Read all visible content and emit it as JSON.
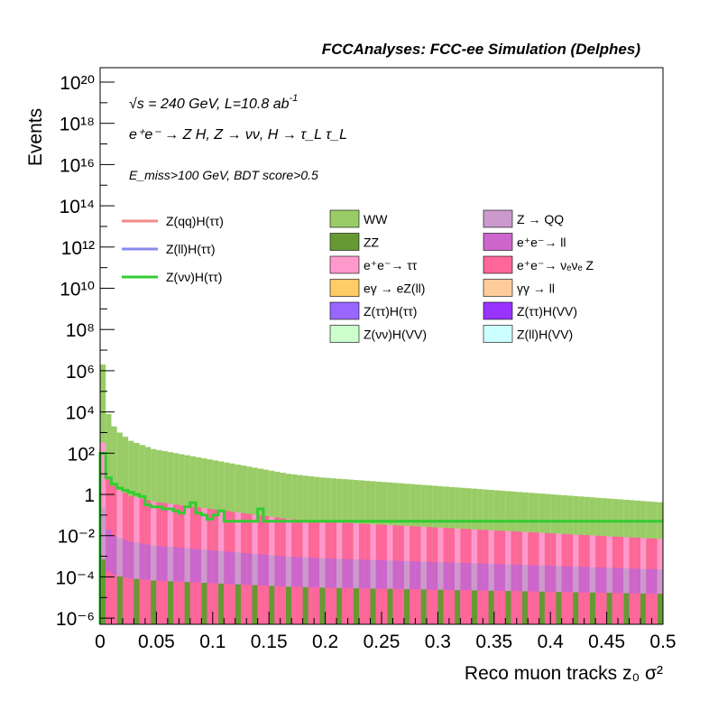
{
  "header": {
    "title": "FCCAnalyses: FCC-ee Simulation (Delphes)"
  },
  "annotations": {
    "line1": "√s = 240 GeV, L=10.8 ab",
    "line1_exp": "-1",
    "line2": "e⁺e⁻ → Z H, Z → νν, H → τ_L τ_L",
    "line3": "E_miss>100 GeV, BDT score>0.5"
  },
  "chart_data": {
    "type": "bar",
    "stacked": true,
    "xlabel": "Reco muon tracks z₀ σ²",
    "ylabel": "Events",
    "xlim": [
      0,
      0.5
    ],
    "ylim_log10": [
      -6.3,
      20.7
    ],
    "log_y": true,
    "x_ticks": [
      "0",
      "0.05",
      "0.1",
      "0.15",
      "0.2",
      "0.25",
      "0.3",
      "0.35",
      "0.4",
      "0.45",
      "0.5"
    ],
    "y_ticks": [
      "10⁻⁶",
      "10⁻⁴",
      "10⁻²",
      "1",
      "10²",
      "10⁴",
      "10⁶",
      "10⁸",
      "10¹⁰",
      "10¹²",
      "10¹⁴",
      "10¹⁶",
      "10¹⁸",
      "10²⁰"
    ],
    "bin_width": 0.005,
    "stack_top_log10": [
      6.3,
      3.9,
      3.3,
      3.0,
      2.8,
      2.6,
      2.5,
      2.4,
      2.3,
      2.2,
      2.15,
      2.1,
      2.05,
      2.0,
      1.95,
      1.9,
      1.85,
      1.8,
      1.75,
      1.7,
      1.65,
      1.6,
      1.55,
      1.5,
      1.45,
      1.4,
      1.35,
      1.3,
      1.25,
      1.2,
      1.15,
      1.1,
      1.05,
      1.0,
      0.97,
      0.94,
      0.91,
      0.88,
      0.85,
      0.82,
      0.8,
      0.78,
      0.76,
      0.74,
      0.72,
      0.7,
      0.68,
      0.66,
      0.64,
      0.62,
      0.6,
      0.58,
      0.56,
      0.54,
      0.52,
      0.5,
      0.48,
      0.46,
      0.44,
      0.42,
      0.4,
      0.38,
      0.36,
      0.34,
      0.32,
      0.3,
      0.28,
      0.26,
      0.24,
      0.22,
      0.2,
      0.18,
      0.16,
      0.14,
      0.12,
      0.1,
      0.08,
      0.06,
      0.04,
      0.02,
      0.0,
      -0.02,
      -0.04,
      -0.06,
      -0.08,
      -0.1,
      -0.12,
      -0.14,
      -0.16,
      -0.18,
      -0.2,
      -0.22,
      -0.24,
      -0.26,
      -0.28,
      -0.3,
      -0.32,
      -0.34,
      -0.36,
      -0.38
    ],
    "signal_znn_log10": [
      2.0,
      0.8,
      0.5,
      0.3,
      0.2,
      0.1,
      0.0,
      -0.1,
      -0.5,
      -0.6,
      -0.6,
      -0.7,
      -0.7,
      -0.8,
      -0.9,
      -0.6,
      -0.4,
      -0.9,
      -1.0,
      -1.2,
      -1.0,
      -0.8,
      -1.3,
      -1.3,
      -1.3,
      -1.3,
      -1.3,
      -1.3,
      -0.7,
      -1.3,
      -1.3,
      -1.3,
      -1.3,
      -1.3,
      -1.3,
      -1.3,
      -1.3,
      -1.3,
      -1.3,
      -1.3,
      -1.3,
      -1.3,
      -1.3,
      -1.3,
      -1.3,
      -1.3,
      -1.3,
      -1.3,
      -1.3,
      -1.3,
      -1.3,
      -1.3,
      -1.3,
      -1.3,
      -1.3,
      -1.3,
      -1.3,
      -1.3,
      -1.3,
      -1.3,
      -1.3,
      -1.3,
      -1.3,
      -1.3,
      -1.3,
      -1.3,
      -1.3,
      -1.3,
      -1.3,
      -1.3,
      -1.3,
      -1.3,
      -1.3,
      -1.3,
      -1.3,
      -1.3,
      -1.3,
      -1.3,
      -1.3,
      -1.3,
      -1.3,
      -1.3,
      -1.3,
      -1.3,
      -1.3,
      -1.3,
      -1.3,
      -1.3,
      -1.3,
      -1.3,
      -1.3,
      -1.3,
      -1.3,
      -1.3,
      -1.3,
      -1.3,
      -1.3,
      -1.3,
      -1.3,
      -1.3
    ],
    "signal_legend": [
      {
        "name": "Z(qq)H(ττ)",
        "color": "#f08a8a"
      },
      {
        "name": "Z(ll)H(ττ)",
        "color": "#8a8af0"
      },
      {
        "name": "Z(νν)H(ττ)",
        "color": "#33cc33"
      }
    ],
    "background_legend": [
      {
        "name": "WW",
        "color": "#99cc66"
      },
      {
        "name": "Z → QQ",
        "color": "#cc99cc"
      },
      {
        "name": "ZZ",
        "color": "#669933"
      },
      {
        "name": "e⁺e⁻→ ll",
        "color": "#cc66cc"
      },
      {
        "name": "e⁺e⁻→ ττ",
        "color": "#ff99cc"
      },
      {
        "name": "e⁺e⁻→ νₑνₑ Z",
        "color": "#ff6699"
      },
      {
        "name": "eγ → eZ(ll)",
        "color": "#ffcc66"
      },
      {
        "name": "γγ → ll",
        "color": "#ffcc99"
      },
      {
        "name": "Z(ττ)H(ττ)",
        "color": "#9966ff"
      },
      {
        "name": "Z(ττ)H(VV)",
        "color": "#9933ff"
      },
      {
        "name": "Z(νν)H(VV)",
        "color": "#ccffcc"
      },
      {
        "name": "Z(ll)H(VV)",
        "color": "#ccffff"
      }
    ]
  }
}
